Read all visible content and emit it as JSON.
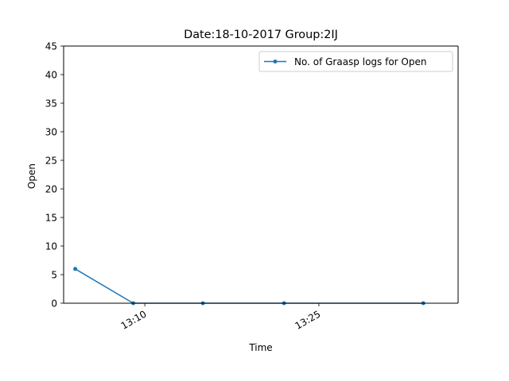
{
  "chart_data": {
    "type": "line",
    "title": "Date:18-10-2017  Group:2IJ",
    "xlabel": "Time",
    "ylabel": "Open",
    "ylim": [
      0,
      45
    ],
    "xlim": [
      "13:03",
      "13:37"
    ],
    "yticks": [
      0,
      5,
      10,
      15,
      20,
      25,
      30,
      35,
      40,
      45
    ],
    "ytick_labels": [
      "0",
      "5",
      "10",
      "15",
      "20",
      "25",
      "30",
      "35",
      "40",
      "45"
    ],
    "xticks": [
      "13:10",
      "13:25"
    ],
    "xtick_labels": [
      "13:10",
      "13:25"
    ],
    "grid": false,
    "legend_position": "top-right",
    "series": [
      {
        "name": "No. of Graasp logs for Open",
        "color": "#1f77b4",
        "marker": "dot",
        "x": [
          "13:04",
          "13:09",
          "13:15",
          "13:22",
          "13:34"
        ],
        "y": [
          6,
          0,
          0,
          0,
          0
        ]
      }
    ]
  }
}
